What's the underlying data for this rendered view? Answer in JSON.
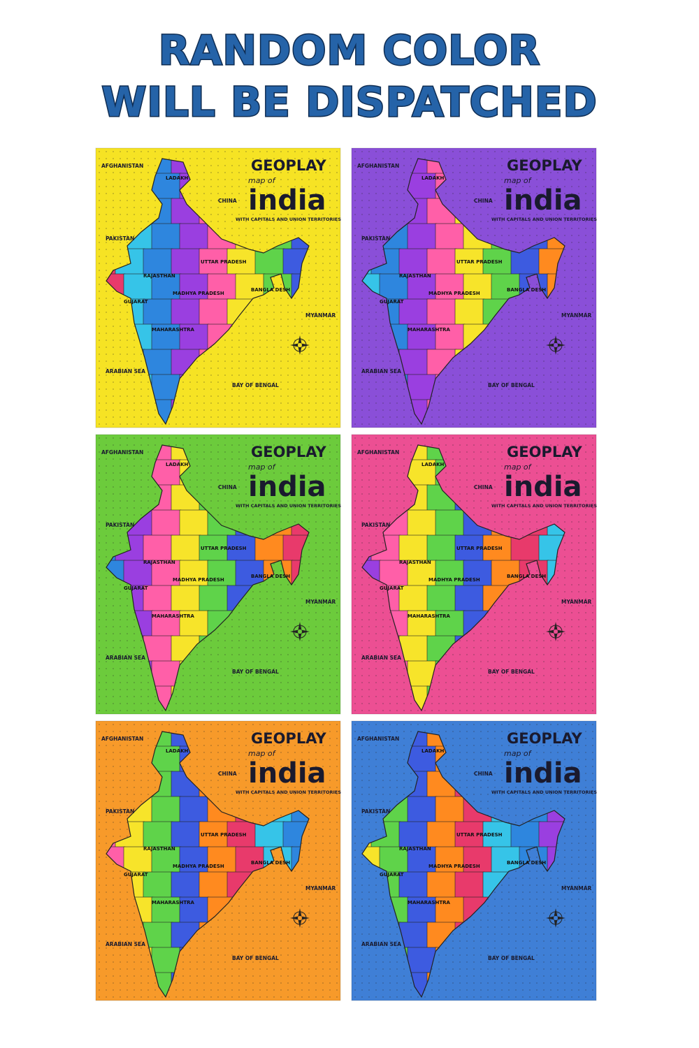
{
  "header": {
    "title_lines": [
      "RANDOM COLOR",
      "WILL BE DISPATCHED"
    ]
  },
  "board": {
    "brand": "GEOPLAY",
    "subtitle": "map of",
    "name": "india",
    "tagline": "WITH CAPITALS AND UNION TERRITORIES",
    "labels": [
      "AFGHANISTAN",
      "PAKISTAN",
      "CHINA",
      "MYANMAR",
      "ARABIAN SEA",
      "BAY OF BENGAL"
    ],
    "states": [
      "LADAKH",
      "RAJASTHAN",
      "UTTAR PRADESH",
      "MADHYA PRADESH",
      "GUJARAT",
      "MAHARASHTRA",
      "BANGLA DESH"
    ]
  },
  "boards": [
    {
      "color": "#f6e324"
    },
    {
      "color": "#8a4fd8"
    },
    {
      "color": "#6ccb3c"
    },
    {
      "color": "#ec4f93"
    },
    {
      "color": "#f79a2a"
    },
    {
      "color": "#3f7fd6"
    }
  ]
}
